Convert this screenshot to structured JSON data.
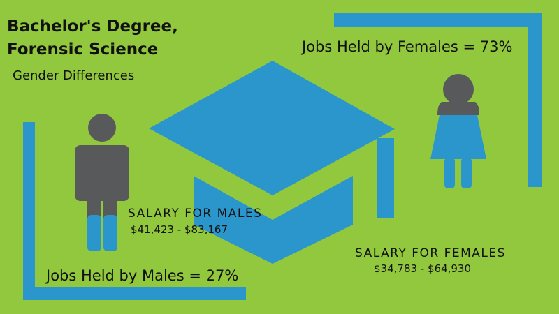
{
  "header": {
    "title_line1": "Bachelor's Degree,",
    "title_line2": "Forensic Science",
    "subtitle": "Gender Differences"
  },
  "females": {
    "jobs": "Jobs Held by Females = 73%",
    "salary_label": "SALARY FOR FEMALES",
    "salary_range": "$34,783 - $64,930"
  },
  "males": {
    "jobs": "Jobs Held by Males = 27%",
    "salary_label": "SALARY FOR MALES",
    "salary_range": "$41,423 - $83,167"
  }
}
